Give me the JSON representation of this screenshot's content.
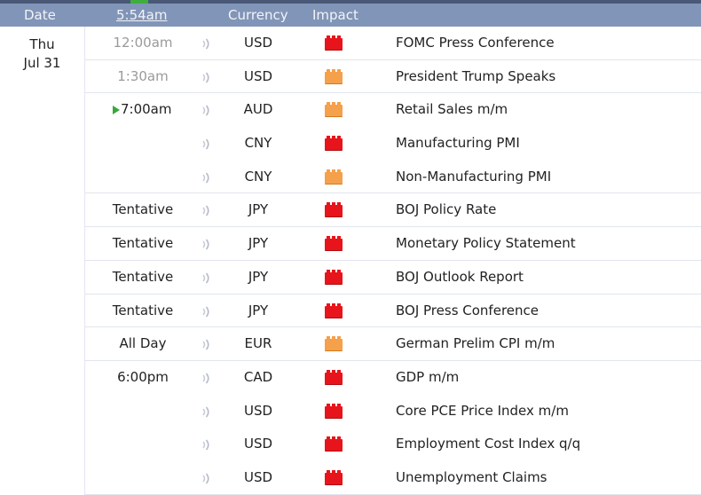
{
  "header": {
    "date_label": "Date",
    "time_label": "5:54am",
    "currency_label": "Currency",
    "impact_label": "Impact"
  },
  "date": {
    "weekday": "Thu",
    "day": "Jul 31"
  },
  "colors": {
    "header_bg": "#8195b8",
    "high_impact": "#e8141b",
    "medium_impact": "#f5a04a",
    "next_event_arrow": "#39a83a"
  },
  "rows": [
    {
      "time": "12:00am",
      "currency": "USD",
      "impact": "high",
      "event": "FOMC Press Conference"
    },
    {
      "time": "1:30am",
      "currency": "USD",
      "impact": "medium",
      "event": "President Trump Speaks"
    },
    {
      "time": "7:00am",
      "currency": "AUD",
      "impact": "medium",
      "event": "Retail Sales m/m"
    },
    {
      "time": "",
      "currency": "CNY",
      "impact": "high",
      "event": "Manufacturing PMI"
    },
    {
      "time": "",
      "currency": "CNY",
      "impact": "medium",
      "event": "Non-Manufacturing PMI"
    },
    {
      "time": "Tentative",
      "currency": "JPY",
      "impact": "high",
      "event": "BOJ Policy Rate"
    },
    {
      "time": "Tentative",
      "currency": "JPY",
      "impact": "high",
      "event": "Monetary Policy Statement"
    },
    {
      "time": "Tentative",
      "currency": "JPY",
      "impact": "high",
      "event": "BOJ Outlook Report"
    },
    {
      "time": "Tentative",
      "currency": "JPY",
      "impact": "high",
      "event": "BOJ Press Conference"
    },
    {
      "time": "All Day",
      "currency": "EUR",
      "impact": "medium",
      "event": "German Prelim CPI m/m"
    },
    {
      "time": "6:00pm",
      "currency": "CAD",
      "impact": "high",
      "event": "GDP m/m"
    },
    {
      "time": "",
      "currency": "USD",
      "impact": "high",
      "event": "Core PCE Price Index m/m"
    },
    {
      "time": "",
      "currency": "USD",
      "impact": "high",
      "event": "Employment Cost Index q/q"
    },
    {
      "time": "",
      "currency": "USD",
      "impact": "high",
      "event": "Unemployment Claims"
    }
  ]
}
